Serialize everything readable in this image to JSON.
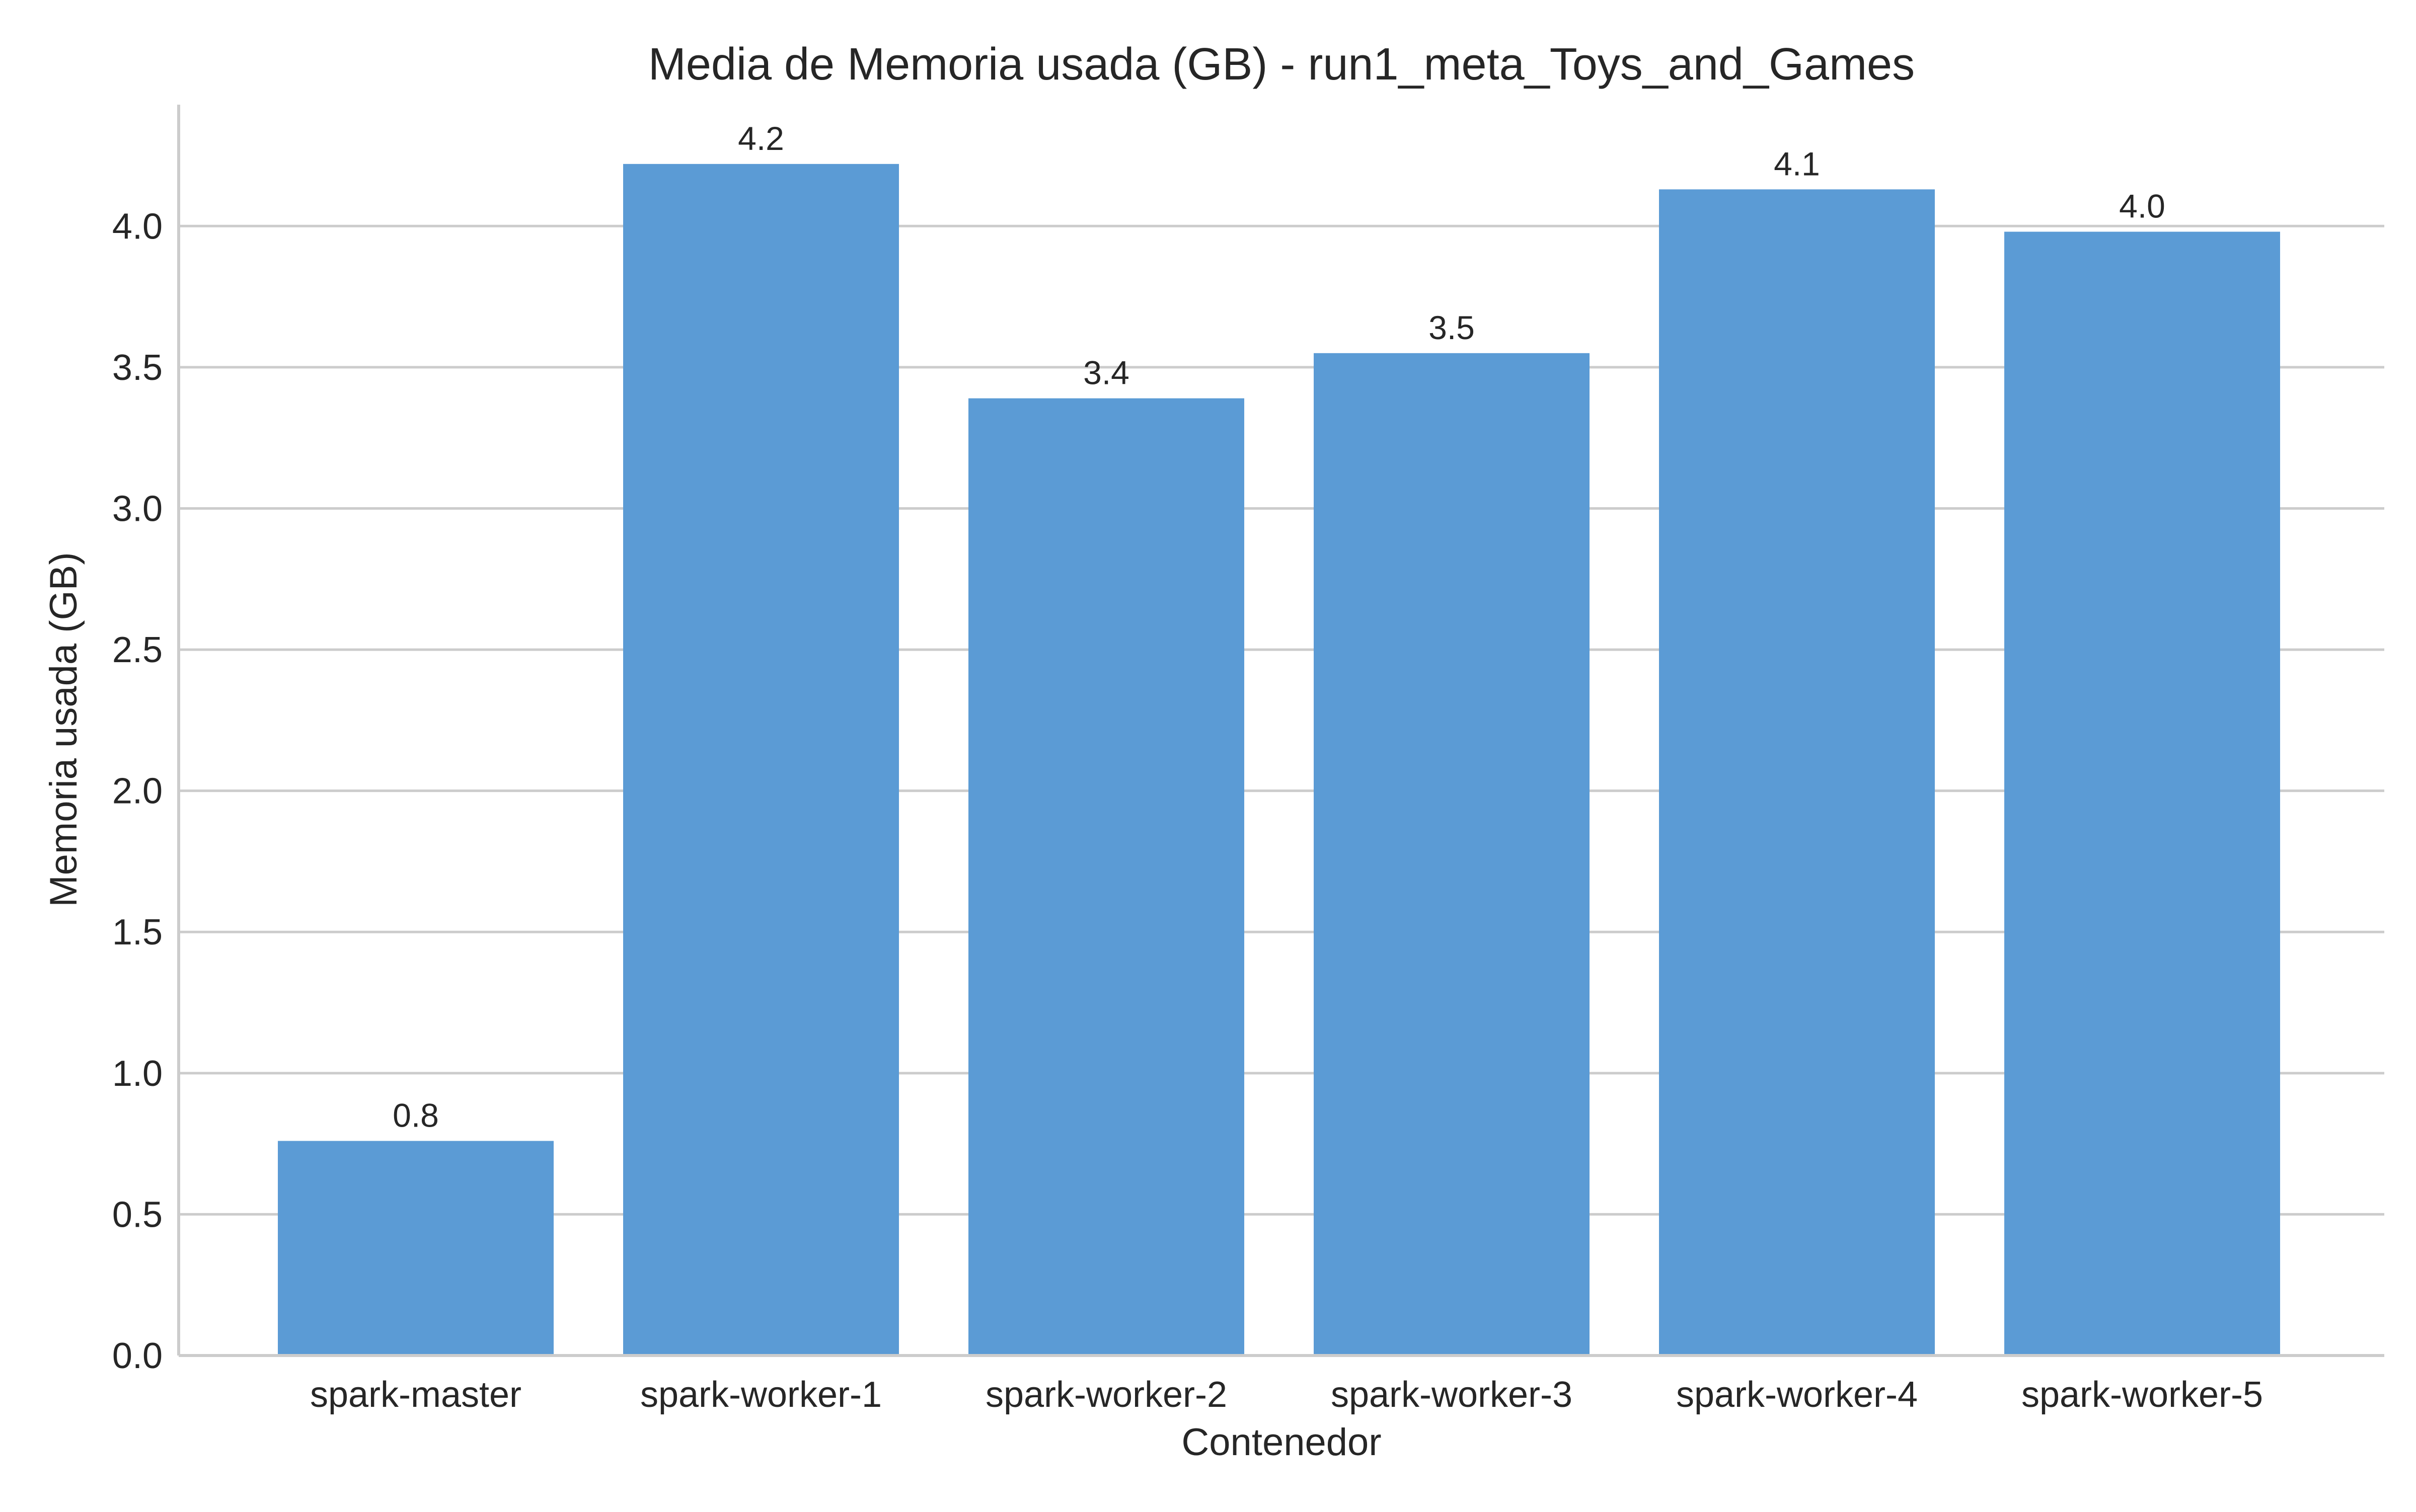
{
  "chart_data": {
    "type": "bar",
    "title": "Media de Memoria usada (GB) - run1_meta_Toys_and_Games",
    "xlabel": "Contenedor",
    "ylabel": "Memoria usada (GB)",
    "categories": [
      "spark-master",
      "spark-worker-1",
      "spark-worker-2",
      "spark-worker-3",
      "spark-worker-4",
      "spark-worker-5"
    ],
    "values": [
      0.76,
      4.22,
      3.39,
      3.55,
      4.13,
      3.98
    ],
    "data_labels": [
      "0.8",
      "4.2",
      "3.4",
      "3.5",
      "4.1",
      "4.0"
    ],
    "ylim": [
      0,
      4.43
    ],
    "yticks": [
      0.0,
      0.5,
      1.0,
      1.5,
      2.0,
      2.5,
      3.0,
      3.5,
      4.0
    ],
    "ytick_labels": [
      "0.0",
      "0.5",
      "1.0",
      "1.5",
      "2.0",
      "2.5",
      "3.0",
      "3.5",
      "4.0"
    ],
    "grid": "horizontal",
    "bar_color": "#5b9bd5",
    "grid_color": "#cccccc"
  }
}
